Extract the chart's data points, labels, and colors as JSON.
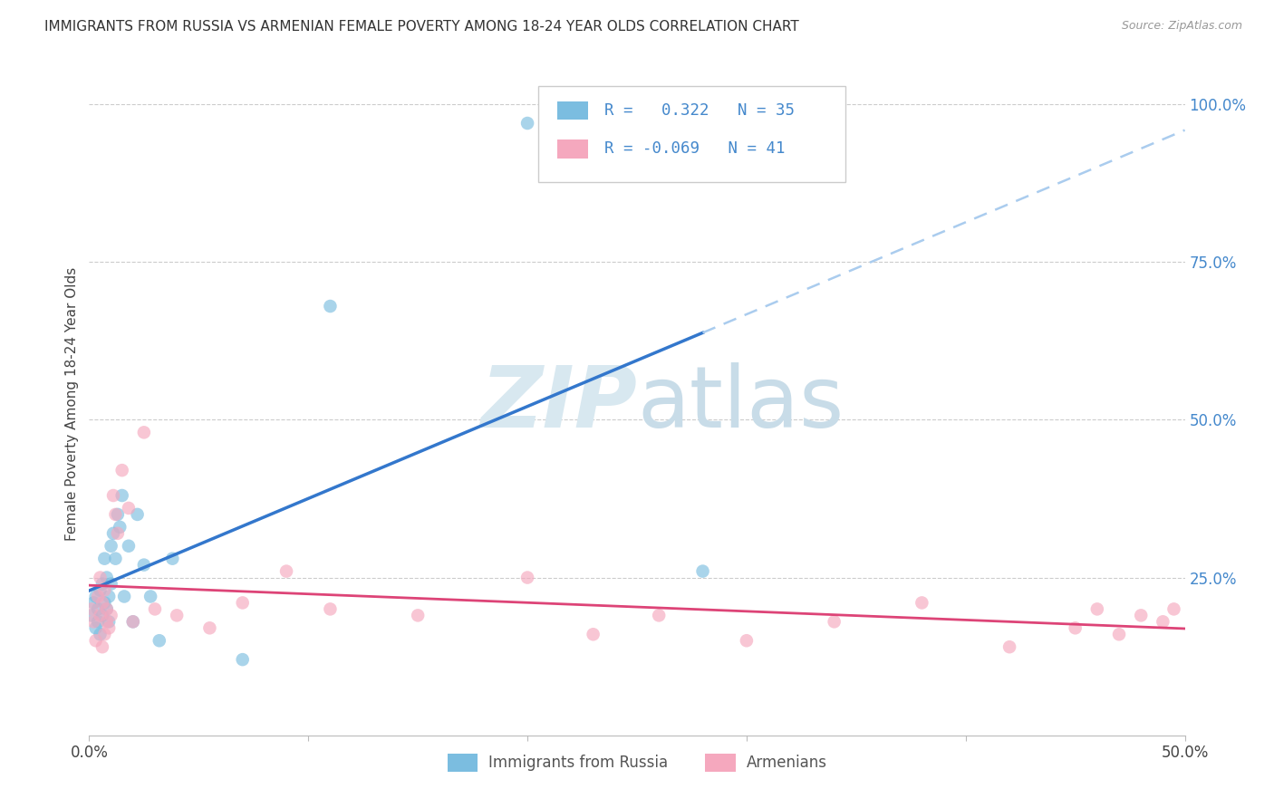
{
  "title": "IMMIGRANTS FROM RUSSIA VS ARMENIAN FEMALE POVERTY AMONG 18-24 YEAR OLDS CORRELATION CHART",
  "source": "Source: ZipAtlas.com",
  "ylabel": "Female Poverty Among 18-24 Year Olds",
  "xlim": [
    0.0,
    0.5
  ],
  "ylim": [
    0.0,
    1.05
  ],
  "legend_r_blue": " 0.322",
  "legend_n_blue": "35",
  "legend_r_pink": "-0.069",
  "legend_n_pink": "41",
  "legend_label_blue": "Immigrants from Russia",
  "legend_label_pink": "Armenians",
  "blue_color": "#7bbde0",
  "pink_color": "#f5a8be",
  "trend_blue_solid_color": "#3377cc",
  "trend_blue_dash_color": "#aaccee",
  "trend_pink_color": "#dd4477",
  "right_tick_color": "#4488cc",
  "watermark_color": "#d8e8f0",
  "russia_x": [
    0.001,
    0.002,
    0.003,
    0.003,
    0.004,
    0.004,
    0.005,
    0.005,
    0.006,
    0.006,
    0.007,
    0.007,
    0.008,
    0.008,
    0.009,
    0.009,
    0.01,
    0.01,
    0.011,
    0.012,
    0.013,
    0.014,
    0.015,
    0.016,
    0.018,
    0.02,
    0.022,
    0.025,
    0.028,
    0.032,
    0.038,
    0.07,
    0.11,
    0.2,
    0.28
  ],
  "russia_y": [
    0.19,
    0.21,
    0.17,
    0.22,
    0.18,
    0.2,
    0.23,
    0.16,
    0.19,
    0.24,
    0.21,
    0.28,
    0.2,
    0.25,
    0.18,
    0.22,
    0.3,
    0.24,
    0.32,
    0.28,
    0.35,
    0.33,
    0.38,
    0.22,
    0.3,
    0.18,
    0.35,
    0.27,
    0.22,
    0.15,
    0.28,
    0.12,
    0.68,
    0.97,
    0.26
  ],
  "armenian_x": [
    0.001,
    0.002,
    0.003,
    0.004,
    0.005,
    0.005,
    0.006,
    0.006,
    0.007,
    0.007,
    0.008,
    0.008,
    0.009,
    0.01,
    0.011,
    0.012,
    0.013,
    0.015,
    0.018,
    0.02,
    0.025,
    0.03,
    0.04,
    0.055,
    0.07,
    0.09,
    0.11,
    0.15,
    0.2,
    0.23,
    0.26,
    0.3,
    0.34,
    0.38,
    0.42,
    0.45,
    0.46,
    0.47,
    0.48,
    0.49,
    0.495
  ],
  "armenian_y": [
    0.2,
    0.18,
    0.15,
    0.22,
    0.19,
    0.25,
    0.14,
    0.21,
    0.16,
    0.23,
    0.18,
    0.2,
    0.17,
    0.19,
    0.38,
    0.35,
    0.32,
    0.42,
    0.36,
    0.18,
    0.48,
    0.2,
    0.19,
    0.17,
    0.21,
    0.26,
    0.2,
    0.19,
    0.25,
    0.16,
    0.19,
    0.15,
    0.18,
    0.21,
    0.14,
    0.17,
    0.2,
    0.16,
    0.19,
    0.18,
    0.2
  ],
  "trend_blue_x_start": 0.0,
  "trend_blue_x_solid_end": 0.28,
  "trend_blue_x_end": 0.5,
  "trend_pink_x_start": 0.0,
  "trend_pink_x_end": 0.5
}
